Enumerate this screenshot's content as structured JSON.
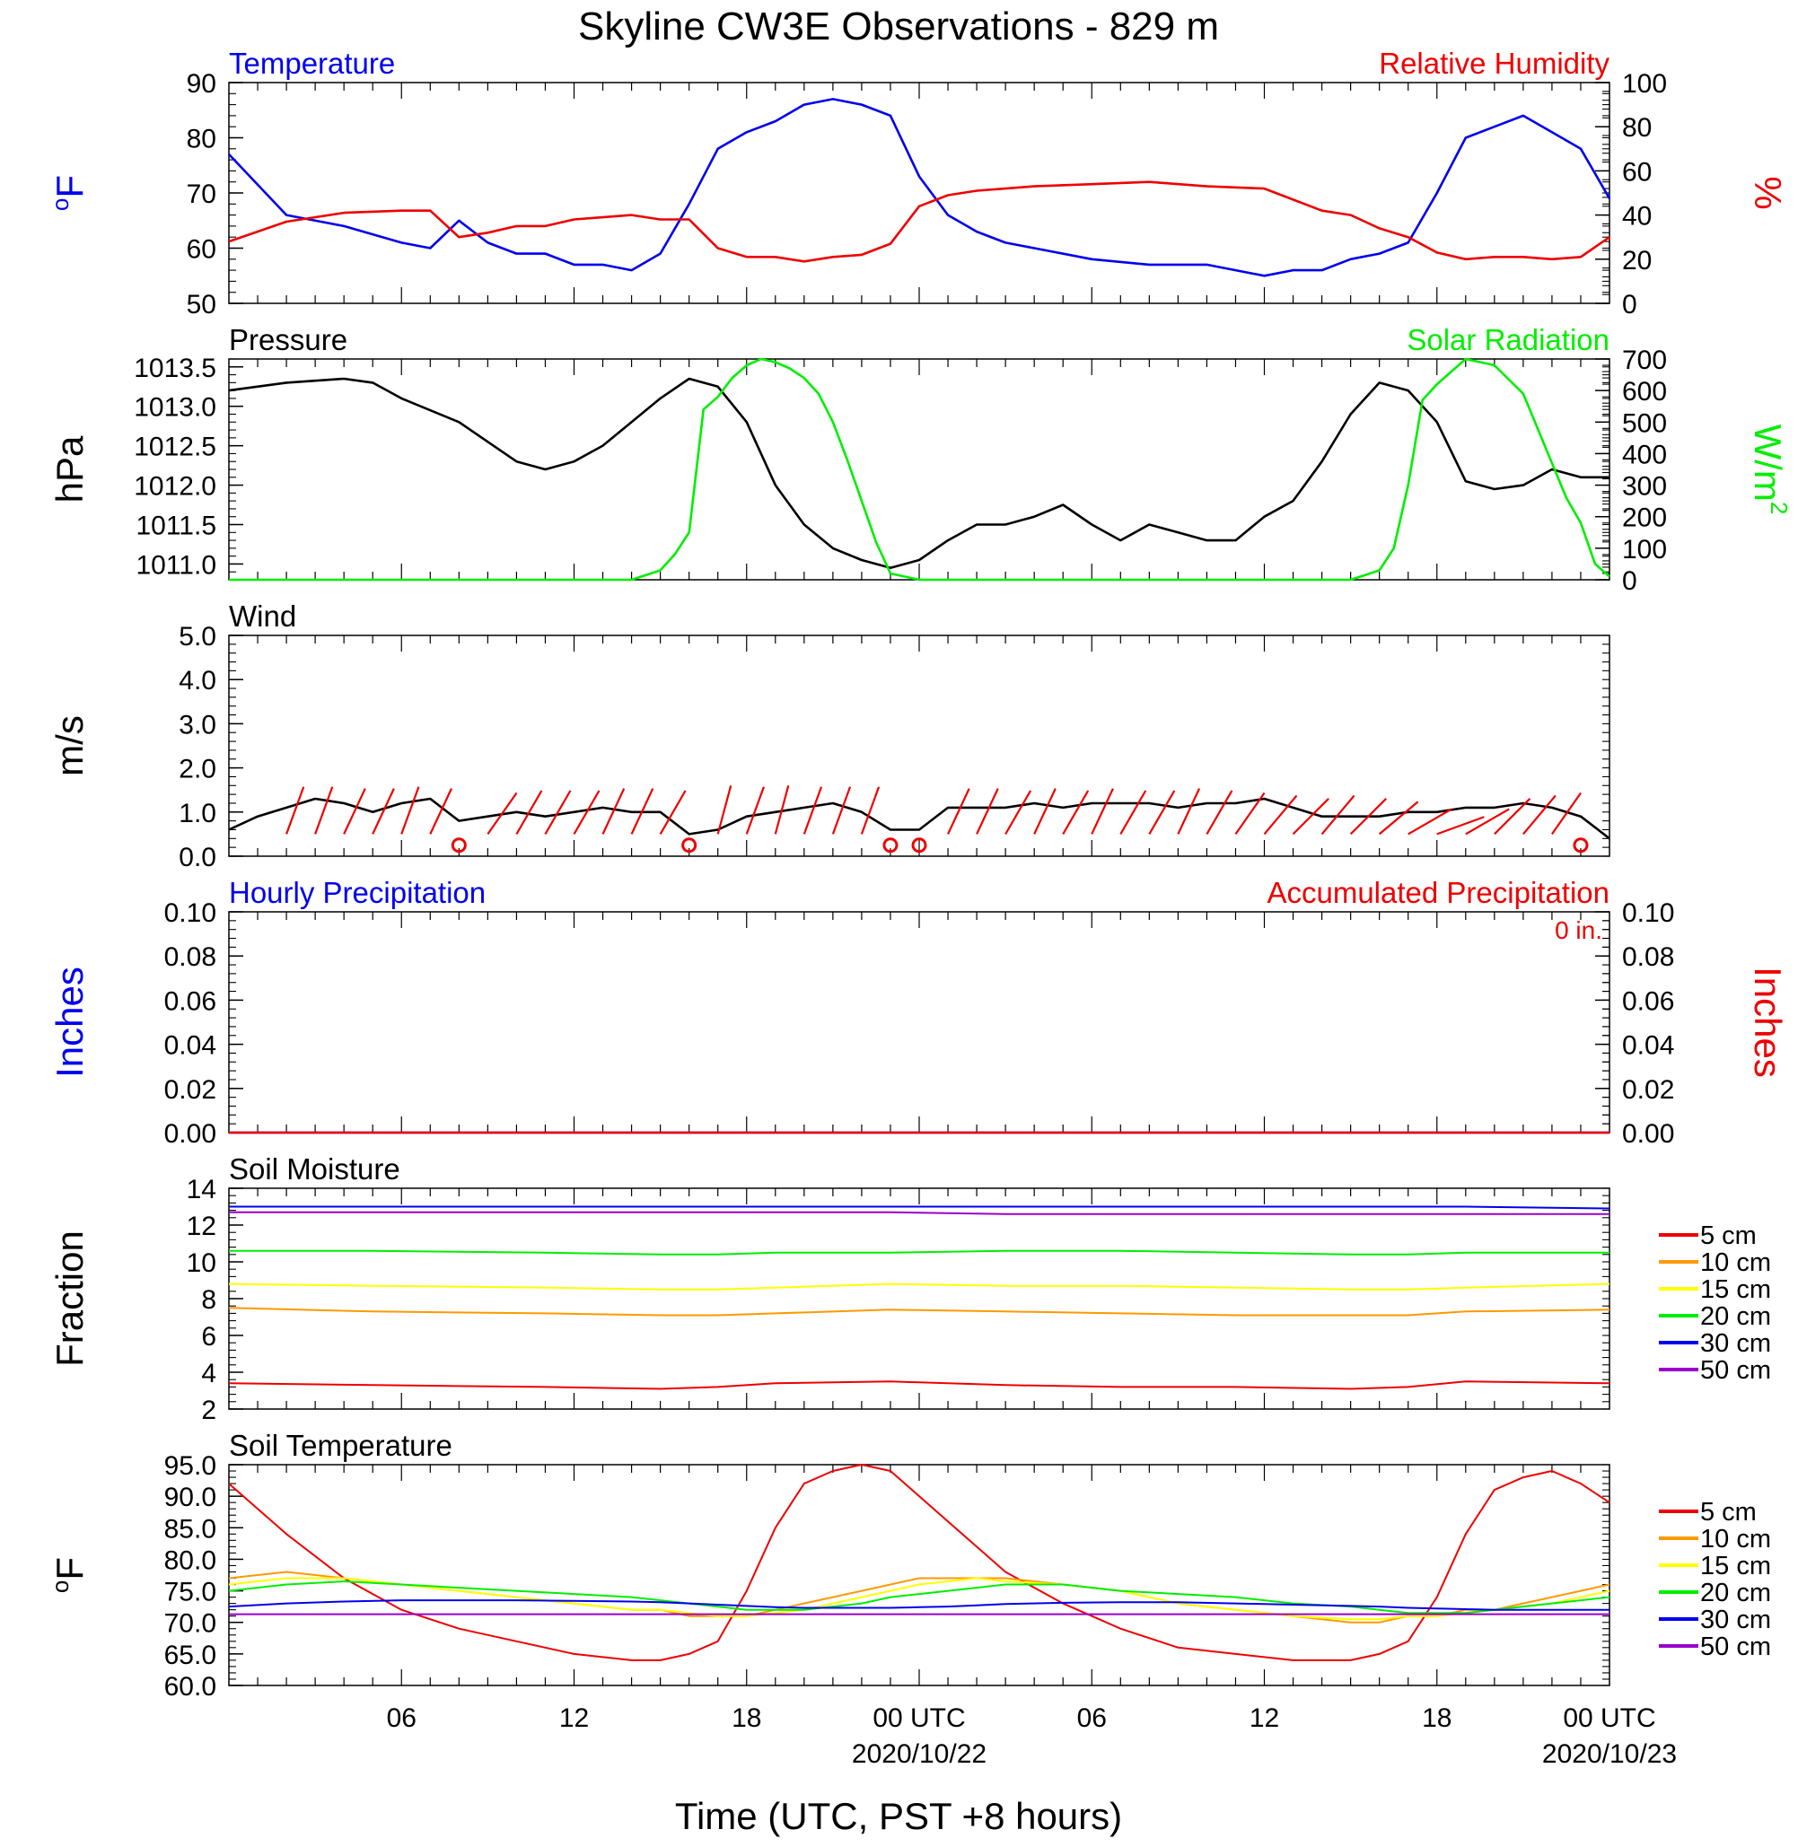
{
  "title": "Skyline CW3E Observations - 829 m",
  "xlabel": "Time (UTC, PST +8 hours)",
  "x_ticks": [
    "06",
    "12",
    "18",
    "00 UTC",
    "06",
    "12",
    "18",
    "00 UTC"
  ],
  "x_dates": [
    "2020/10/22",
    "2020/10/23"
  ],
  "colors": {
    "blue": "#0000ee",
    "red": "#ee0000",
    "green": "#00ee00",
    "black": "#000000",
    "orange": "#ff9900",
    "yellow": "#ffff00",
    "purple": "#9900cc"
  },
  "chart_data": [
    {
      "type": "line",
      "left_title": "Temperature",
      "right_title": "Relative Humidity",
      "ylabel_left": "oF",
      "ylabel_right": "%",
      "ylim_left": [
        50,
        90
      ],
      "ylim_right": [
        0,
        100
      ],
      "yticks_left": [
        "50",
        "60",
        "70",
        "80",
        "90"
      ],
      "yticks_right": [
        "0",
        "20",
        "40",
        "60",
        "80",
        "100"
      ],
      "x_hours": [
        1,
        3,
        5,
        7,
        8,
        9,
        10,
        11,
        12,
        13,
        14,
        15,
        16,
        17,
        18,
        19,
        20,
        21,
        22,
        23,
        24,
        25,
        26,
        27,
        28,
        29,
        31,
        33,
        35,
        37,
        38,
        39,
        40,
        41,
        42,
        43,
        44,
        45,
        46,
        47,
        48,
        49
      ],
      "series": [
        {
          "name": "Temperature",
          "color": "blue",
          "axis": "left",
          "values": [
            77,
            66,
            64,
            61,
            60,
            65,
            61,
            59,
            59,
            57,
            57,
            56,
            59,
            68,
            78,
            81,
            83,
            86,
            87,
            86,
            84,
            73,
            66,
            63,
            61,
            60,
            58,
            57,
            57,
            55,
            56,
            56,
            58,
            59,
            61,
            70,
            80,
            82,
            84,
            81,
            78,
            69
          ]
        },
        {
          "name": "Relative Humidity",
          "color": "red",
          "axis": "right",
          "values": [
            28,
            37,
            41,
            42,
            42,
            30,
            32,
            35,
            35,
            38,
            39,
            40,
            38,
            38,
            25,
            21,
            21,
            19,
            21,
            22,
            27,
            44,
            49,
            51,
            52,
            53,
            54,
            55,
            53,
            52,
            47,
            42,
            40,
            34,
            30,
            23,
            20,
            21,
            21,
            20,
            21,
            30
          ]
        }
      ]
    },
    {
      "type": "line",
      "left_title": "Pressure",
      "right_title": "Solar Radiation",
      "ylabel_left": "hPa",
      "ylabel_right": "W/m",
      "ylabel_right_sup": "2",
      "ylim_left": [
        1010.8,
        1013.6
      ],
      "ylim_right": [
        0,
        700
      ],
      "yticks_left": [
        "1011.0",
        "1011.5",
        "1012.0",
        "1012.5",
        "1013.0",
        "1013.5"
      ],
      "yticks_right": [
        "0",
        "100",
        "200",
        "300",
        "400",
        "500",
        "600",
        "700"
      ],
      "series": [
        {
          "name": "Pressure",
          "color": "black",
          "axis": "left",
          "x_hours": [
            1,
            3,
            5,
            6,
            7,
            9,
            11,
            12,
            13,
            14,
            15,
            16,
            17,
            18,
            19,
            20,
            21,
            22,
            23,
            24,
            25,
            26,
            27,
            28,
            29,
            30,
            31,
            32,
            33,
            34,
            35,
            36,
            37,
            38,
            39,
            40,
            41,
            42,
            43,
            44,
            45,
            46,
            47,
            48,
            49
          ],
          "values": [
            1013.2,
            1013.3,
            1013.35,
            1013.3,
            1013.1,
            1012.8,
            1012.3,
            1012.2,
            1012.3,
            1012.5,
            1012.8,
            1013.1,
            1013.35,
            1013.25,
            1012.8,
            1012.0,
            1011.5,
            1011.2,
            1011.05,
            1010.95,
            1011.05,
            1011.3,
            1011.5,
            1011.5,
            1011.6,
            1011.75,
            1011.5,
            1011.3,
            1011.5,
            1011.4,
            1011.3,
            1011.3,
            1011.6,
            1011.8,
            1012.3,
            1012.9,
            1013.3,
            1013.2,
            1012.8,
            1012.05,
            1011.95,
            1012.0,
            1012.2,
            1012.1,
            1012.1
          ]
        },
        {
          "name": "Solar Radiation",
          "color": "green",
          "axis": "right",
          "x_hours": [
            1,
            15,
            16,
            16.5,
            17,
            17.5,
            18,
            18.5,
            19,
            19.5,
            20,
            20.5,
            21,
            21.5,
            22,
            22.5,
            23,
            23.5,
            24,
            25,
            40,
            41,
            41.5,
            42,
            42.5,
            43,
            44,
            45,
            46,
            46.5,
            47,
            47.5,
            48,
            48.5,
            49
          ],
          "values": [
            0,
            0,
            30,
            80,
            150,
            540,
            580,
            640,
            680,
            700,
            690,
            670,
            640,
            590,
            500,
            380,
            250,
            120,
            20,
            0,
            0,
            30,
            100,
            300,
            570,
            620,
            700,
            680,
            590,
            480,
            370,
            260,
            180,
            50,
            10
          ]
        }
      ]
    },
    {
      "type": "line",
      "left_title": "Wind",
      "ylabel_left": "m/s",
      "ylim_left": [
        0,
        5
      ],
      "yticks_left": [
        "0.0",
        "1.0",
        "2.0",
        "3.0",
        "4.0",
        "5.0"
      ],
      "x_hours": [
        1,
        2,
        3,
        4,
        5,
        6,
        7,
        8,
        9,
        10,
        11,
        12,
        13,
        14,
        15,
        16,
        17,
        18,
        19,
        20,
        21,
        22,
        23,
        24,
        25,
        26,
        27,
        28,
        29,
        30,
        31,
        32,
        33,
        34,
        35,
        36,
        37,
        38,
        39,
        40,
        41,
        42,
        43,
        44,
        45,
        46,
        47,
        48,
        49
      ],
      "series": [
        {
          "name": "Wind",
          "color": "black",
          "axis": "left",
          "values": [
            0.6,
            0.9,
            1.1,
            1.3,
            1.2,
            1.0,
            1.2,
            1.3,
            0.8,
            0.9,
            1.0,
            0.9,
            1.0,
            1.1,
            1.0,
            1.0,
            0.5,
            0.6,
            0.9,
            1.0,
            1.1,
            1.2,
            1.0,
            0.6,
            0.6,
            1.1,
            1.1,
            1.1,
            1.2,
            1.1,
            1.2,
            1.2,
            1.2,
            1.1,
            1.2,
            1.2,
            1.3,
            1.1,
            0.9,
            0.9,
            0.9,
            1.0,
            1.0,
            1.1,
            1.1,
            1.2,
            1.1,
            0.9,
            0.4
          ]
        }
      ],
      "barb_hours": [
        3,
        4,
        5,
        6,
        7,
        8,
        10,
        11,
        12,
        13,
        14,
        15,
        16,
        18,
        19,
        20,
        21,
        22,
        23,
        26,
        27,
        28,
        29,
        30,
        31,
        32,
        33,
        34,
        35,
        36,
        37,
        38,
        39,
        40,
        41,
        42,
        43,
        44,
        45,
        46,
        47
      ],
      "barb_directions_deg": [
        200,
        200,
        205,
        205,
        200,
        205,
        215,
        210,
        210,
        210,
        205,
        205,
        210,
        195,
        200,
        195,
        200,
        200,
        200,
        205,
        205,
        210,
        205,
        210,
        205,
        210,
        210,
        205,
        210,
        215,
        220,
        225,
        220,
        225,
        230,
        240,
        250,
        240,
        225,
        220,
        215
      ],
      "calm_hours": [
        9,
        17,
        24,
        25,
        48
      ]
    },
    {
      "type": "line",
      "left_title": "Hourly Precipitation",
      "right_title": "Accumulated Precipitation",
      "annotation": "0 in.",
      "ylabel_left": "Inches",
      "ylabel_right": "Inches",
      "ylim_left": [
        0,
        0.1
      ],
      "ylim_right": [
        0,
        0.1
      ],
      "yticks_left": [
        "0.00",
        "0.02",
        "0.04",
        "0.06",
        "0.08",
        "0.10"
      ],
      "yticks_right": [
        "0.00",
        "0.02",
        "0.04",
        "0.06",
        "0.08",
        "0.10"
      ],
      "x_hours": [
        1,
        49
      ],
      "series": [
        {
          "name": "Hourly Precipitation",
          "color": "blue",
          "axis": "left",
          "values": [
            0,
            0
          ]
        },
        {
          "name": "Accumulated Precipitation",
          "color": "red",
          "axis": "right",
          "values": [
            0,
            0
          ]
        }
      ]
    },
    {
      "type": "line",
      "left_title": "Soil Moisture",
      "ylabel_left": "Fraction",
      "ylim_left": [
        2,
        14
      ],
      "yticks_left": [
        "2",
        "4",
        "6",
        "8",
        "10",
        "12",
        "14"
      ],
      "legend": [
        "5 cm",
        "10 cm",
        "15 cm",
        "20 cm",
        "30 cm",
        "50 cm"
      ],
      "legend_placement": "right",
      "x_hours": [
        1,
        6,
        12,
        16,
        18,
        20,
        24,
        28,
        32,
        36,
        40,
        42,
        44,
        49
      ],
      "series": [
        {
          "name": "5 cm",
          "color": "red",
          "values": [
            3.4,
            3.3,
            3.2,
            3.1,
            3.2,
            3.4,
            3.5,
            3.3,
            3.2,
            3.2,
            3.1,
            3.2,
            3.5,
            3.4
          ]
        },
        {
          "name": "10 cm",
          "color": "orange",
          "values": [
            7.5,
            7.3,
            7.2,
            7.1,
            7.1,
            7.2,
            7.4,
            7.3,
            7.2,
            7.1,
            7.1,
            7.1,
            7.3,
            7.4
          ]
        },
        {
          "name": "15 cm",
          "color": "yellow",
          "values": [
            8.8,
            8.7,
            8.6,
            8.5,
            8.5,
            8.6,
            8.8,
            8.7,
            8.7,
            8.6,
            8.5,
            8.5,
            8.6,
            8.8
          ]
        },
        {
          "name": "20 cm",
          "color": "green",
          "values": [
            10.6,
            10.6,
            10.5,
            10.4,
            10.4,
            10.5,
            10.5,
            10.6,
            10.6,
            10.5,
            10.4,
            10.4,
            10.5,
            10.5
          ]
        },
        {
          "name": "30 cm",
          "color": "blue",
          "values": [
            13.0,
            13.0,
            13.0,
            13.0,
            13.0,
            13.0,
            13.0,
            13.0,
            13.0,
            13.0,
            13.0,
            13.0,
            13.0,
            12.9
          ]
        },
        {
          "name": "50 cm",
          "color": "purple",
          "values": [
            12.7,
            12.7,
            12.7,
            12.7,
            12.7,
            12.7,
            12.7,
            12.6,
            12.6,
            12.6,
            12.6,
            12.6,
            12.6,
            12.6
          ]
        }
      ]
    },
    {
      "type": "line",
      "left_title": "Soil Temperature",
      "ylabel_left": "oF",
      "ylim_left": [
        60,
        95
      ],
      "yticks_left": [
        "60.0",
        "65.0",
        "70.0",
        "75.0",
        "80.0",
        "85.0",
        "90.0",
        "95.0"
      ],
      "legend": [
        "5 cm",
        "10 cm",
        "15 cm",
        "20 cm",
        "30 cm",
        "50 cm"
      ],
      "legend_placement": "right",
      "x_hours": [
        1,
        3,
        5,
        7,
        9,
        11,
        13,
        15,
        16,
        17,
        18,
        19,
        20,
        21,
        22,
        23,
        24,
        25,
        26,
        27,
        28,
        30,
        32,
        34,
        36,
        38,
        40,
        41,
        42,
        43,
        44,
        45,
        46,
        47,
        48,
        49
      ],
      "series": [
        {
          "name": "5 cm",
          "color": "red",
          "values": [
            92,
            84,
            77,
            72,
            69,
            67,
            65,
            64,
            64,
            65,
            67,
            75,
            85,
            92,
            94,
            95,
            94,
            90,
            86,
            82,
            78,
            73,
            69,
            66,
            65,
            64,
            64,
            65,
            67,
            74,
            84,
            91,
            93,
            94,
            92,
            89
          ]
        },
        {
          "name": "10 cm",
          "color": "orange",
          "values": [
            77,
            78,
            77,
            76,
            75,
            74,
            73,
            72,
            72,
            71,
            71,
            71,
            72,
            73,
            74,
            75,
            76,
            77,
            77,
            77,
            77,
            76,
            75,
            73,
            72,
            71,
            70,
            70,
            71,
            71,
            72,
            72,
            73,
            74,
            75,
            76
          ]
        },
        {
          "name": "15 cm",
          "color": "yellow",
          "values": [
            76,
            77,
            77,
            76,
            75,
            74,
            73,
            72,
            72,
            71.5,
            71,
            71,
            71.5,
            72,
            73,
            74,
            75,
            76,
            76.5,
            77,
            76.5,
            76,
            75,
            73,
            72,
            71,
            70.5,
            70.5,
            71,
            71,
            71.5,
            72,
            72.5,
            73,
            74,
            75
          ]
        },
        {
          "name": "20 cm",
          "color": "green",
          "values": [
            75,
            76,
            76.5,
            76,
            75.5,
            75,
            74.5,
            74,
            73.5,
            73,
            72.5,
            72,
            72,
            72,
            72.5,
            73,
            74,
            74.5,
            75,
            75.5,
            76,
            76,
            75,
            74.5,
            74,
            73,
            72.5,
            72,
            71.5,
            71.5,
            71.5,
            72,
            72.5,
            73,
            73.5,
            74
          ]
        },
        {
          "name": "30 cm",
          "color": "blue",
          "values": [
            72.5,
            73,
            73.3,
            73.5,
            73.5,
            73.5,
            73.4,
            73.3,
            73.2,
            73,
            72.8,
            72.6,
            72.4,
            72.3,
            72.3,
            72.3,
            72.3,
            72.4,
            72.5,
            72.7,
            72.9,
            73.1,
            73.2,
            73.2,
            73,
            72.8,
            72.6,
            72.5,
            72.3,
            72.2,
            72.1,
            72,
            72,
            72,
            72,
            72
          ]
        },
        {
          "name": "50 cm",
          "color": "purple",
          "values": [
            71.3,
            71.3,
            71.3,
            71.3,
            71.3,
            71.3,
            71.3,
            71.3,
            71.3,
            71.3,
            71.3,
            71.3,
            71.3,
            71.3,
            71.3,
            71.3,
            71.3,
            71.3,
            71.3,
            71.3,
            71.3,
            71.3,
            71.3,
            71.3,
            71.3,
            71.3,
            71.3,
            71.3,
            71.3,
            71.3,
            71.3,
            71.3,
            71.3,
            71.3,
            71.3,
            71.3
          ]
        }
      ]
    }
  ]
}
